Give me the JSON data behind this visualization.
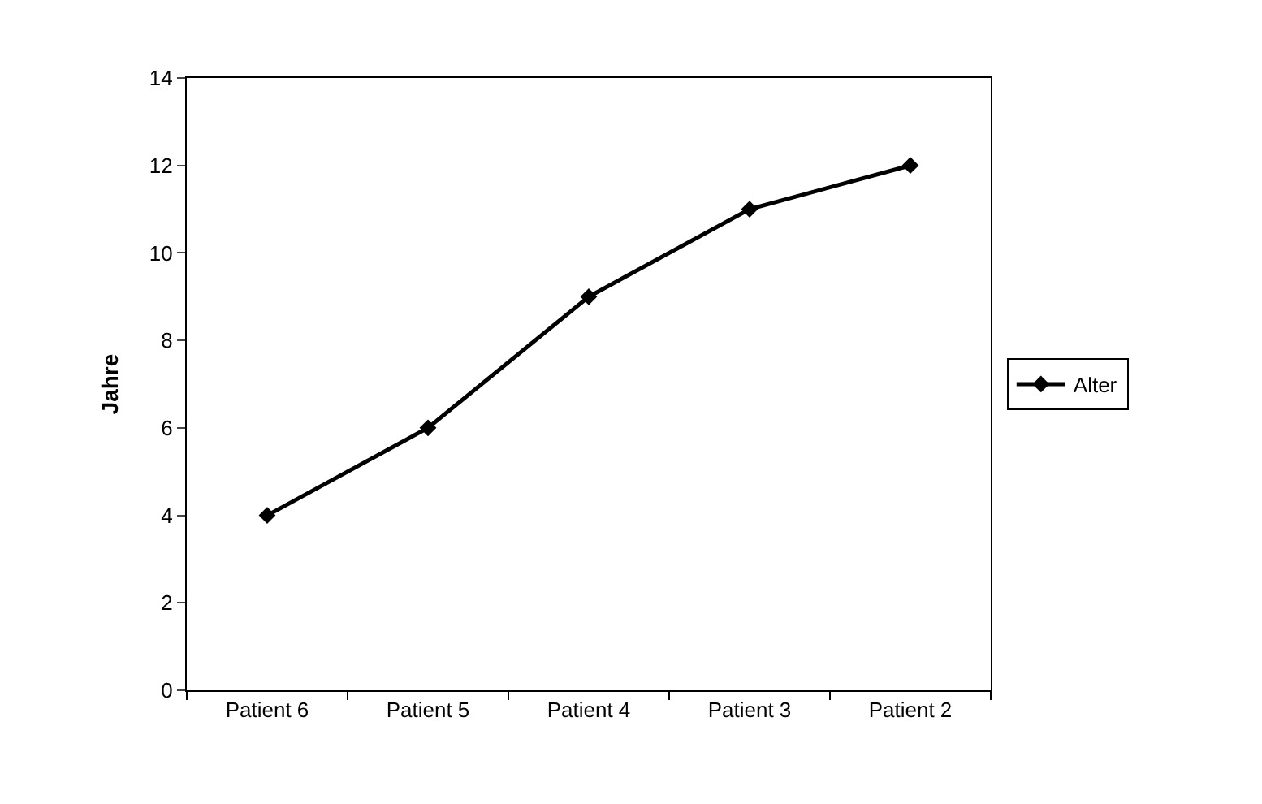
{
  "chart_data": {
    "type": "line",
    "ylabel": "Jahre",
    "categories": [
      "Patient 6",
      "Patient 5",
      "Patient 4",
      "Patient 3",
      "Patient 2"
    ],
    "series": [
      {
        "name": "Alter",
        "color": "#000000",
        "values": [
          4,
          6,
          9,
          11,
          12
        ]
      }
    ],
    "ylim": [
      0,
      14
    ],
    "yticks": [
      0,
      2,
      4,
      6,
      8,
      10,
      12,
      14
    ],
    "grid": false,
    "legend": "right",
    "marker": "diamond",
    "line_style": "solid"
  }
}
